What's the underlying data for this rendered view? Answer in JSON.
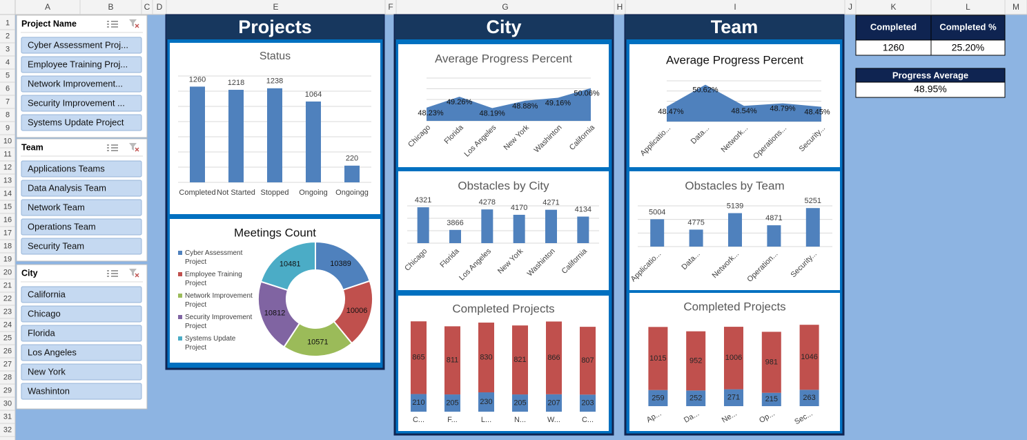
{
  "spreadsheet": {
    "columns": [
      "A",
      "B",
      "C",
      "D",
      "E",
      "F",
      "G",
      "H",
      "I",
      "J",
      "K",
      "L",
      "M"
    ],
    "rows": [
      1,
      2,
      3,
      4,
      5,
      6,
      7,
      8,
      9,
      10,
      11,
      12,
      13,
      14,
      15,
      16,
      17,
      18,
      19,
      20,
      21,
      22,
      23,
      24,
      25,
      26,
      27,
      28,
      29,
      30,
      31,
      32
    ]
  },
  "slicers": [
    {
      "title": "Project Name",
      "items": [
        "Cyber Assessment Proj...",
        "Employee Training Proj...",
        "Network Improvement...",
        "Security Improvement ...",
        "Systems Update Project"
      ]
    },
    {
      "title": "Team",
      "items": [
        "Applications Teams",
        "Data Analysis Team",
        "Network Team",
        "Operations Team",
        "Security Team"
      ]
    },
    {
      "title": "City",
      "items": [
        "California",
        "Chicago",
        "Florida",
        "Los Angeles",
        "New York",
        "Washinton"
      ]
    }
  ],
  "panels": [
    "Projects",
    "City",
    "Team"
  ],
  "kpis": {
    "table": {
      "headers": [
        "Completed",
        "Completed %"
      ],
      "values": [
        1260,
        "25.20%"
      ]
    },
    "progress": {
      "title": "Progress Average",
      "value": "48.95%"
    }
  },
  "chart_data": [
    {
      "type": "bar",
      "title": "Status",
      "categories": [
        "Completed",
        "Not Started",
        "Stopped",
        "Ongoing",
        "Ongoingg"
      ],
      "values": [
        1260,
        1218,
        1238,
        1064,
        220
      ],
      "color": "#4f81bd",
      "ylim": [
        0,
        1400
      ],
      "yticks": [
        0,
        200,
        400,
        600,
        800,
        1000,
        1200,
        1400
      ],
      "grid": true
    },
    {
      "type": "donut",
      "title": "Meetings Count",
      "categories": [
        "Cyber Assessment Project",
        "Employee Training Project",
        "Network Improvement Project",
        "Security Improvement Project",
        "Systems Update Project"
      ],
      "values": [
        10389,
        10006,
        10571,
        10812,
        10481
      ],
      "colors": [
        "#4f81bd",
        "#c0504d",
        "#9bbb59",
        "#8064a2",
        "#4bacc6"
      ],
      "legend": "left"
    },
    {
      "type": "area",
      "title": "Average Progress Percent",
      "categories": [
        "Chicago",
        "Florida",
        "Los Angeles",
        "New York",
        "Washinton",
        "California"
      ],
      "values": [
        48.23,
        49.26,
        48.19,
        48.88,
        49.16,
        50.06
      ],
      "value_labels": [
        "48.23%",
        "49.26%",
        "48.19%",
        "48.88%",
        "49.16%",
        "50.06%"
      ],
      "color": "#4f81bd",
      "ylim": [
        47,
        51
      ],
      "yticks": [
        47,
        48,
        49,
        50,
        51
      ],
      "grid": true
    },
    {
      "type": "bar",
      "title": "Obstacles by City",
      "categories": [
        "Chicago",
        "Florida",
        "Los Angeles",
        "New York",
        "Washinton",
        "California"
      ],
      "values": [
        4321,
        3866,
        4278,
        4170,
        4271,
        4134
      ],
      "color": "#4f81bd",
      "ylim": [
        3600,
        4350
      ],
      "yticks": [
        3600,
        3850,
        4100,
        4350
      ],
      "grid": true
    },
    {
      "type": "stacked_bar",
      "title": "Completed Projects",
      "categories": [
        "C...",
        "F...",
        "L...",
        "N...",
        "W...",
        "C..."
      ],
      "series": [
        {
          "color": "#4f81bd",
          "values": [
            210,
            205,
            230,
            205,
            207,
            203
          ]
        },
        {
          "color": "#c0504d",
          "values": [
            865,
            811,
            830,
            821,
            866,
            807
          ]
        }
      ],
      "ylim": [
        0,
        1200
      ]
    },
    {
      "type": "area",
      "title": "Average Progress Percent",
      "categories": [
        "Applicatio...",
        "Data...",
        "Network...",
        "Operations...",
        "Security..."
      ],
      "values": [
        48.47,
        50.62,
        48.54,
        48.79,
        48.45
      ],
      "value_labels": [
        "48.47%",
        "50.62%",
        "48.54%",
        "48.79%",
        "48.45%"
      ],
      "color": "#4f81bd",
      "ylim": [
        47,
        51
      ],
      "yticks": [
        47,
        48,
        49,
        50,
        51
      ],
      "grid": true
    },
    {
      "type": "bar",
      "title": "Obstacles by Team",
      "categories": [
        "Applicatio...",
        "Data...",
        "Network...",
        "Operation...",
        "Security..."
      ],
      "values": [
        5004,
        4775,
        5139,
        4871,
        5251
      ],
      "color": "#4f81bd",
      "ylim": [
        4400,
        5300
      ],
      "yticks": [
        4400,
        4700,
        5000,
        5300
      ],
      "grid": true
    },
    {
      "type": "stacked_bar",
      "title": "Completed Projects",
      "categories": [
        "Ap...",
        "Da...",
        "Ne...",
        "Op...",
        "Sec..."
      ],
      "series": [
        {
          "color": "#4f81bd",
          "values": [
            259,
            252,
            271,
            215,
            263
          ]
        },
        {
          "color": "#c0504d",
          "values": [
            1015,
            952,
            1006,
            981,
            1046
          ]
        }
      ],
      "ylim": [
        0,
        1400
      ]
    }
  ]
}
